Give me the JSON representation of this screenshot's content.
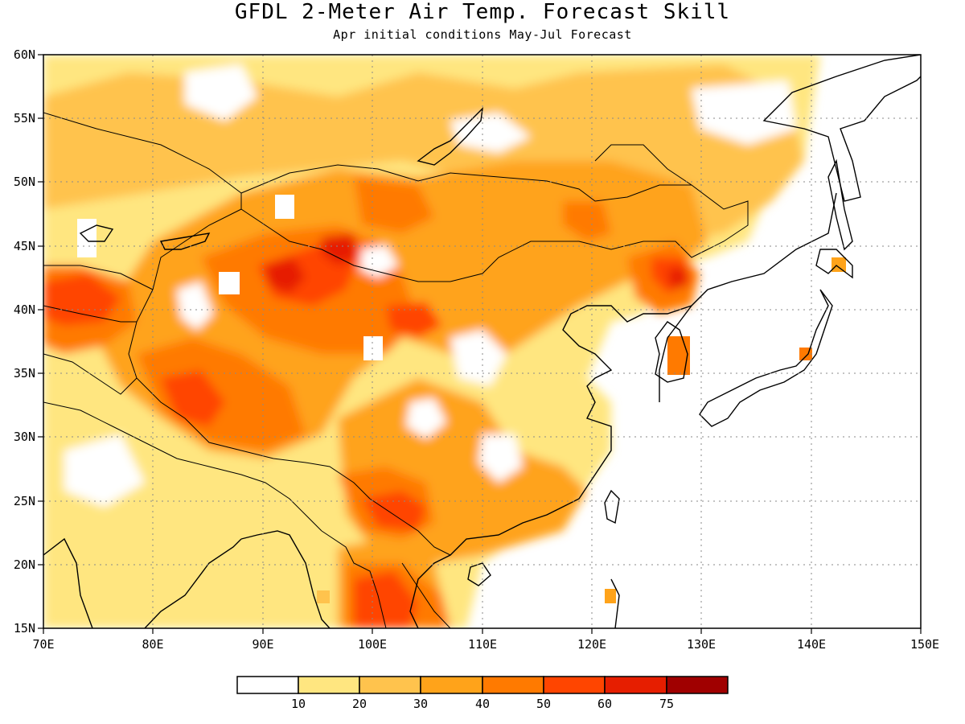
{
  "title": "GFDL 2-Meter Air Temp. Forecast Skill",
  "subtitle": "Apr initial conditions  May-Jul Forecast",
  "axes": {
    "lon_ticks": [
      "70E",
      "80E",
      "90E",
      "100E",
      "110E",
      "120E",
      "130E",
      "140E",
      "150E"
    ],
    "lat_ticks": [
      "15N",
      "20N",
      "25N",
      "30N",
      "35N",
      "40N",
      "45N",
      "50N",
      "55N",
      "60N"
    ],
    "lon_range": [
      70,
      150
    ],
    "lat_range": [
      15,
      60
    ],
    "grid": "dotted"
  },
  "colorbar": {
    "labels": [
      "10",
      "20",
      "30",
      "40",
      "50",
      "60",
      "75"
    ],
    "colors": [
      "#ffffff",
      "#ffe680",
      "#ffc34d",
      "#ffa31a",
      "#ff7a00",
      "#ff4500",
      "#e61e00",
      "#a00000"
    ]
  },
  "chart_data": {
    "type": "heatmap",
    "title": "GFDL 2-Meter Air Temp. Forecast Skill",
    "subtitle": "Apr initial conditions  May-Jul Forecast",
    "xlabel": "",
    "ylabel": "",
    "xlim": [
      70,
      150
    ],
    "ylim": [
      15,
      60
    ],
    "levels": [
      10,
      20,
      30,
      40,
      50,
      60,
      75
    ],
    "regions": [
      {
        "lon": 92,
        "lat": 42,
        "value": 65
      },
      {
        "lon": 97,
        "lat": 45,
        "value": 60
      },
      {
        "lon": 75,
        "lat": 41,
        "value": 55
      },
      {
        "lon": 84,
        "lat": 33,
        "value": 60
      },
      {
        "lon": 103,
        "lat": 24,
        "value": 55
      },
      {
        "lon": 101,
        "lat": 17,
        "value": 60
      },
      {
        "lon": 127,
        "lat": 42,
        "value": 55
      },
      {
        "lon": 102,
        "lat": 40,
        "value": 50
      },
      {
        "lon": 95,
        "lat": 35,
        "value": 45
      },
      {
        "lon": 110,
        "lat": 47,
        "value": 35
      },
      {
        "lon": 120,
        "lat": 46,
        "value": 35
      },
      {
        "lon": 98,
        "lat": 30,
        "value": 45
      },
      {
        "lon": 113,
        "lat": 26,
        "value": 35
      },
      {
        "lon": 80,
        "lat": 20,
        "value": 20
      },
      {
        "lon": 100,
        "lat": 56,
        "value": 15
      }
    ]
  }
}
